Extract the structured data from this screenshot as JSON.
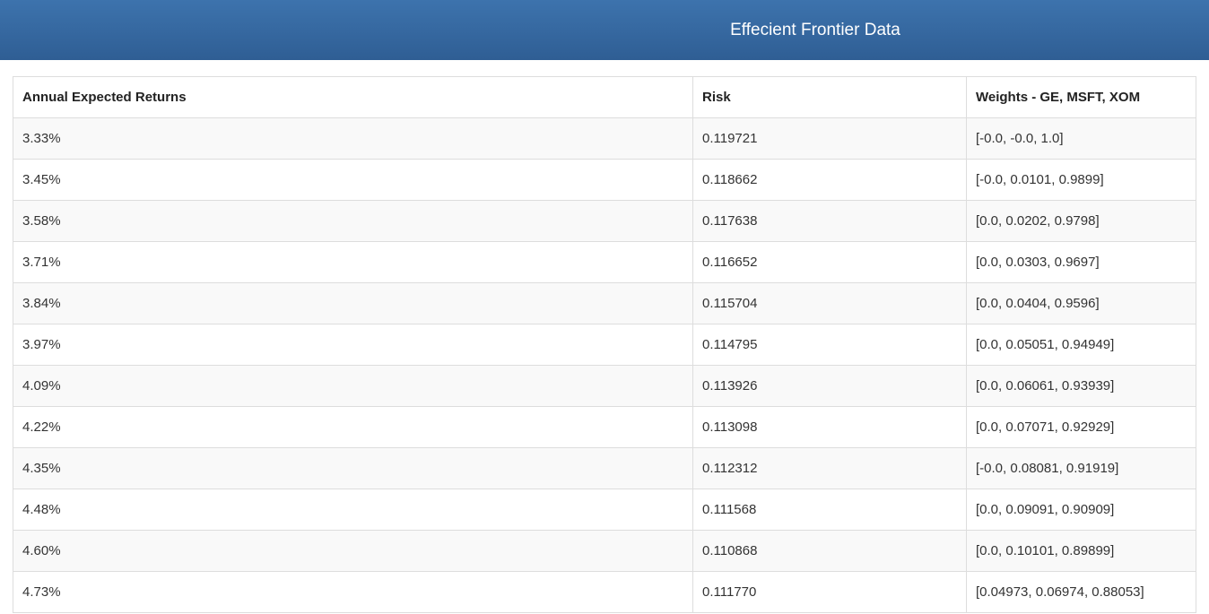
{
  "header": {
    "title": "Effecient Frontier Data"
  },
  "table": {
    "columns": [
      "Annual Expected Returns",
      "Risk",
      "Weights - GE, MSFT, XOM"
    ],
    "rows": [
      {
        "returns": "3.33%",
        "risk": "0.119721",
        "weights": "[-0.0, -0.0, 1.0]"
      },
      {
        "returns": "3.45%",
        "risk": "0.118662",
        "weights": "[-0.0, 0.0101, 0.9899]"
      },
      {
        "returns": "3.58%",
        "risk": "0.117638",
        "weights": "[0.0, 0.0202, 0.9798]"
      },
      {
        "returns": "3.71%",
        "risk": "0.116652",
        "weights": "[0.0, 0.0303, 0.9697]"
      },
      {
        "returns": "3.84%",
        "risk": "0.115704",
        "weights": "[0.0, 0.0404, 0.9596]"
      },
      {
        "returns": "3.97%",
        "risk": "0.114795",
        "weights": "[0.0, 0.05051, 0.94949]"
      },
      {
        "returns": "4.09%",
        "risk": "0.113926",
        "weights": "[0.0, 0.06061, 0.93939]"
      },
      {
        "returns": "4.22%",
        "risk": "0.113098",
        "weights": "[0.0, 0.07071, 0.92929]"
      },
      {
        "returns": "4.35%",
        "risk": "0.112312",
        "weights": "[-0.0, 0.08081, 0.91919]"
      },
      {
        "returns": "4.48%",
        "risk": "0.111568",
        "weights": "[0.0, 0.09091, 0.90909]"
      },
      {
        "returns": "4.60%",
        "risk": "0.110868",
        "weights": "[0.0, 0.10101, 0.89899]"
      },
      {
        "returns": "4.73%",
        "risk": "0.111770",
        "weights": "[0.04973, 0.06974, 0.88053]"
      }
    ]
  },
  "colors": {
    "header_bg_top": "#3d73ad",
    "header_bg_bottom": "#2f5e94",
    "header_text": "#ffffff",
    "border": "#dddddd",
    "row_alt": "#f9f9f9",
    "text": "#333333"
  }
}
